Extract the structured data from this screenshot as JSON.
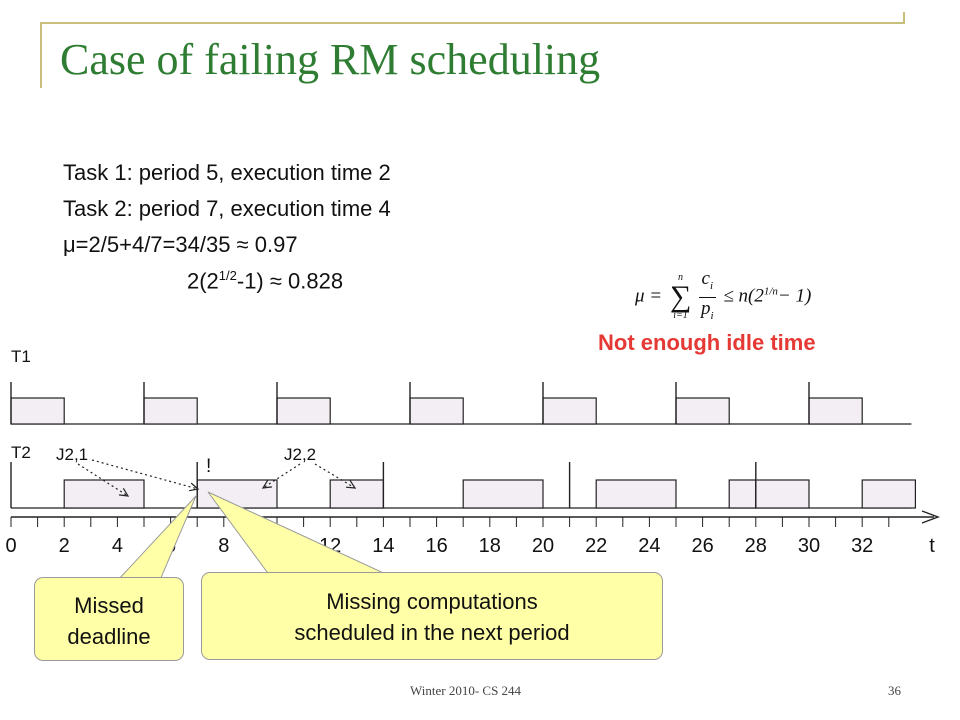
{
  "slide": {
    "title": "Case of failing RM scheduling",
    "task_lines": [
      "Task 1: period 5, execution time 2",
      "Task 2: period 7, execution time 4"
    ],
    "utilization_line": "μ=2/5+4/7=34/35 ≈ 0.97",
    "bound": {
      "prefix": "2(2",
      "exponent": "1/2",
      "suffix": "-1) ≈ 0.828"
    },
    "formula": {
      "lhs": "μ =",
      "sum_top": "n",
      "sum_bottom": "i=1",
      "frac_num": "c",
      "frac_num_sub": "i",
      "frac_den": "p",
      "frac_den_sub": "i",
      "rhs_prefix": "≤ n(2",
      "rhs_exp": "1/n",
      "rhs_suffix": "− 1)"
    },
    "warning": "Not enough idle time",
    "callouts": {
      "missed": [
        "Missed",
        "deadline"
      ],
      "missing": [
        "Missing computations",
        "scheduled in the next period"
      ]
    },
    "footer": {
      "left": "Winter 2010- CS 244",
      "page": "36"
    }
  },
  "colors": {
    "title": "#2e7d32",
    "warning": "#e53935",
    "bar_fill": "#f3eef4",
    "callout_fill": "#ffffa8"
  },
  "chart_data": {
    "type": "timeline",
    "rows": [
      {
        "label": "T1",
        "period_marks": [
          0,
          5,
          10,
          15,
          20,
          25,
          30
        ],
        "bars": [
          [
            0,
            2
          ],
          [
            5,
            7
          ],
          [
            10,
            12
          ],
          [
            15,
            17
          ],
          [
            20,
            22
          ],
          [
            25,
            27
          ],
          [
            30,
            32
          ]
        ]
      },
      {
        "label": "T2",
        "period_marks": [
          0,
          7,
          14,
          21,
          28
        ],
        "bars": [
          [
            2,
            5
          ],
          [
            7,
            10
          ],
          [
            12,
            14
          ],
          [
            17,
            20
          ],
          [
            22,
            25
          ],
          [
            27,
            28
          ],
          [
            28,
            30
          ],
          [
            32,
            34
          ]
        ],
        "job_labels": [
          "J2,1",
          "J2,2"
        ],
        "marker": "!"
      }
    ],
    "x_ticks": [
      0,
      2,
      4,
      6,
      8,
      10,
      12,
      14,
      16,
      18,
      20,
      22,
      24,
      26,
      28,
      30,
      32
    ],
    "x_label": "t",
    "x_range": [
      0,
      34
    ]
  }
}
